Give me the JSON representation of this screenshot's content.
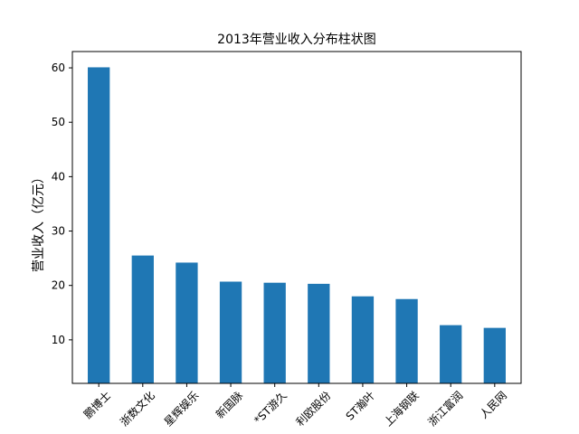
{
  "chart_data": {
    "type": "bar",
    "title": "2013年营业收入分布柱状图",
    "xlabel": "",
    "ylabel": "营业收入（亿元）",
    "categories": [
      "鹏博士",
      "浙数文化",
      "星辉娱乐",
      "新国脉",
      "*ST游久",
      "利欧股份",
      "ST瀚叶",
      "上海钢联",
      "浙江富润",
      "人民网"
    ],
    "values": [
      60.1,
      25.5,
      24.2,
      20.7,
      20.5,
      20.3,
      18.0,
      17.5,
      12.7,
      12.2
    ],
    "ylim": [
      2.0,
      63.0
    ],
    "yticks": [
      10,
      20,
      30,
      40,
      50,
      60
    ],
    "bar_color": "#1f77b4",
    "grid": false,
    "legend": "none"
  }
}
